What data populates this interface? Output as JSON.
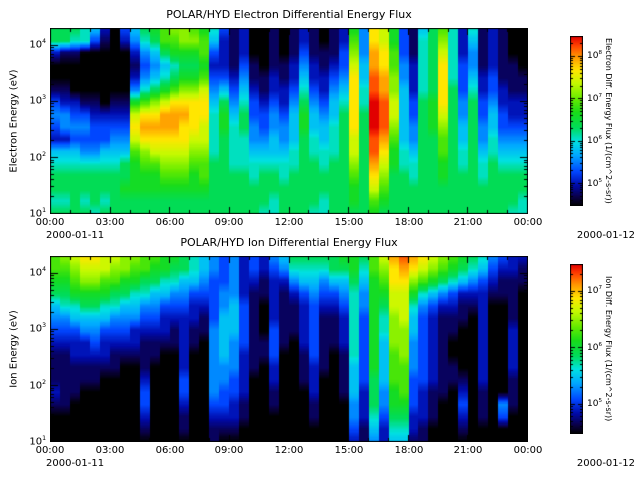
{
  "figure": {
    "bg": "#ffffff",
    "text_color": "#000000"
  },
  "colormap": [
    [
      0.0,
      "#000000"
    ],
    [
      0.05,
      "#0a0046"
    ],
    [
      0.12,
      "#000aaa"
    ],
    [
      0.2,
      "#0046ff"
    ],
    [
      0.3,
      "#00aaff"
    ],
    [
      0.38,
      "#00e1e1"
    ],
    [
      0.46,
      "#00dc5a"
    ],
    [
      0.55,
      "#19dc19"
    ],
    [
      0.63,
      "#64eb00"
    ],
    [
      0.72,
      "#c3fa00"
    ],
    [
      0.8,
      "#ffe600"
    ],
    [
      0.88,
      "#ff9600"
    ],
    [
      0.95,
      "#ff3c00"
    ],
    [
      1.0,
      "#e10000"
    ]
  ],
  "chart_data": [
    {
      "type": "heatmap",
      "title": "POLAR/HYD  Electron Differential Energy Flux",
      "ylabel": "Electron Energy (eV)",
      "date_left": "2000-01-11",
      "date_right": "2000-01-12",
      "x_ticks": [
        "00:00",
        "03:00",
        "06:00",
        "09:00",
        "12:00",
        "15:00",
        "18:00",
        "21:00",
        "00:00"
      ],
      "y_range_eV": [
        10,
        20000
      ],
      "colorbar": {
        "label": "Electron Diff. Energy Flux  (1/(cm^2-s-sr))",
        "tick_exps": [
          8,
          7,
          6,
          5
        ],
        "range": [
          30000,
          300000000
        ]
      },
      "grid": {
        "cols": 48,
        "rows": 16,
        "col_minutes": 30,
        "note": "hex digits 0-f per half-hour column; 0=no flux (black), f=max flux (red); rows log-spaced top 20 keV to bottom 10 eV"
      },
      "grid_hex_rows": [
        "777652035789aa986312001012101284cb83157962612100",
        "7766310246799aa95212001012101294cb83167a62512100",
        "211000002457888932120010131113a4dc93167b62412100",
        "000000001345677822131011242123b5dc94267c63412110",
        "000000002456788933241121252234c5eda4267c63523111",
        "1100000046789aab45352122363245c6eda5267c73623211",
        "3221101189abcccc57463232474356c6feb5378c74734222",
        "44332222bccdddcc68573343585457c7feb5378b74735322",
        "34443333cddddccb68674344585567c7fea5478a75745333",
        "22333344bcccccbb67664454576567b7ed95477975746444",
        "555445559abbbbaa67665555676667b7ec86577976756555",
        "66666667899aaa9977666666677677a7db86677876767666",
        "77777777888999897777677677777797ca77677877767777",
        "77777778888888887777777777777787b977777777777777",
        "667676777777777777777767777677879877777777777776",
        "777767777777777777777667776677778777777777777766"
      ]
    },
    {
      "type": "heatmap",
      "title": "POLAR/HYD  Ion Differential Energy Flux",
      "ylabel": "Ion Energy (eV)",
      "date_left": "2000-01-11",
      "date_right": "2000-01-12",
      "x_ticks": [
        "00:00",
        "03:00",
        "06:00",
        "09:00",
        "12:00",
        "15:00",
        "18:00",
        "21:00",
        "00:00"
      ],
      "y_range_eV": [
        10,
        20000
      ],
      "colorbar": {
        "label": "Ion Diff. Energy Flux  (1/(cm^2-s-sr))",
        "tick_exps": [
          7,
          6,
          5
        ],
        "range": [
          30000,
          30000000
        ]
      },
      "grid": {
        "cols": 48,
        "rows": 16,
        "col_minutes": 30,
        "note": "hex digits 0-f per half-hour column; 0=no flux (black), f=max flux (red); rows log-spaced top 20 keV to bottom 10 eV"
      },
      "grid_hex_rows": [
        "9abccbbaa998876543423245777778879bdedcba98764322",
        "99abbbaa9988776543423234666677869acdcba987653221",
        "889aa99887766554334221224554557589cca98765432111",
        "7788887766554433344211212343346488bb865432221110",
        "5667766554433322345310211232236487bb643221120010",
        "4455554443322221355310211231126386ab532111020010",
        "3334433322221211455310311231126386aa532110020020",
        "2222322221111210454311310231126385aa432100020020",
        "11222211111002004542113001310163859a432100020020",
        "111111100100020044421020012101538599432110020020",
        "111110000200030044320020012001537599332111020010",
        "211000000300030043320010002001527489321102010010",
        "110000000300020033210010001000427488321003010410",
        "000000000200010022210000001000426377221002010300",
        "000000000100010011100000000000315266210001000000",
        "000000000000000010000000000000214255110000000000"
      ]
    }
  ]
}
